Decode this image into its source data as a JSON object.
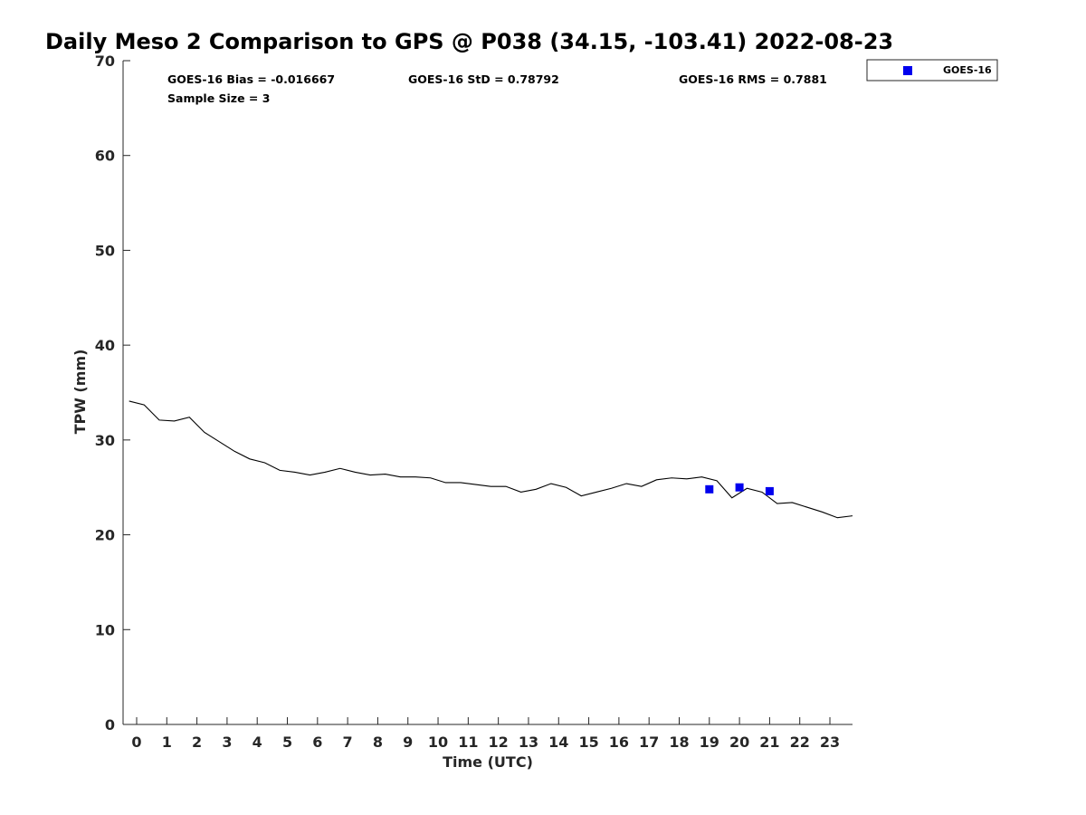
{
  "chart_data": {
    "type": "line",
    "title": "Daily Meso 2 Comparison to GPS @ P038 (34.15, -103.41) 2022-08-23",
    "xlabel": "Time (UTC)",
    "ylabel": "TPW (mm)",
    "xlim": [
      -0.45,
      23.75
    ],
    "ylim": [
      0,
      70
    ],
    "x_ticks": [
      0,
      1,
      2,
      3,
      4,
      5,
      6,
      7,
      8,
      9,
      10,
      11,
      12,
      13,
      14,
      15,
      16,
      17,
      18,
      19,
      20,
      21,
      22,
      23
    ],
    "y_ticks": [
      0,
      10,
      20,
      30,
      40,
      50,
      60,
      70
    ],
    "grid": false,
    "legend_position": "top-right-outside",
    "colors": {
      "gps_line": "#000000",
      "goes": "#0000ee"
    },
    "stats": {
      "bias": "GOES-16 Bias = -0.016667",
      "std": "GOES-16 StD = 0.78792",
      "rms": "GOES-16 RMS = 0.7881",
      "sample": "Sample Size = 3"
    },
    "series": [
      {
        "kind": "line",
        "x": [
          -0.25,
          0.25,
          0.75,
          1.25,
          1.75,
          2.25,
          2.75,
          3.25,
          3.75,
          4.25,
          4.75,
          5.25,
          5.75,
          6.25,
          6.75,
          7.25,
          7.75,
          8.25,
          8.75,
          9.25,
          9.75,
          10.25,
          10.75,
          11.25,
          11.75,
          12.25,
          12.75,
          13.25,
          13.75,
          14.25,
          14.75,
          15.25,
          15.75,
          16.25,
          16.75,
          17.25,
          17.75,
          18.25,
          18.75,
          19.25,
          19.75,
          20.25,
          20.75,
          21.25,
          21.75,
          22.25,
          22.75,
          23.25,
          23.75
        ],
        "values": [
          34.1,
          33.7,
          32.1,
          32.0,
          32.4,
          30.8,
          29.8,
          28.8,
          28.0,
          27.6,
          26.8,
          26.6,
          26.3,
          26.6,
          27.0,
          26.6,
          26.3,
          26.4,
          26.1,
          26.1,
          26.0,
          25.5,
          25.5,
          25.3,
          25.1,
          25.1,
          24.5,
          24.8,
          25.4,
          25.0,
          24.1,
          24.5,
          24.9,
          25.4,
          25.1,
          25.8,
          26.0,
          25.9,
          26.1,
          25.7,
          23.9,
          24.9,
          24.5,
          23.3,
          23.4,
          22.9,
          22.4,
          21.8,
          22.0
        ]
      },
      {
        "name": "GOES-16",
        "kind": "scatter",
        "x": [
          19,
          20,
          21
        ],
        "values": [
          24.8,
          25.0,
          24.6
        ]
      }
    ]
  }
}
